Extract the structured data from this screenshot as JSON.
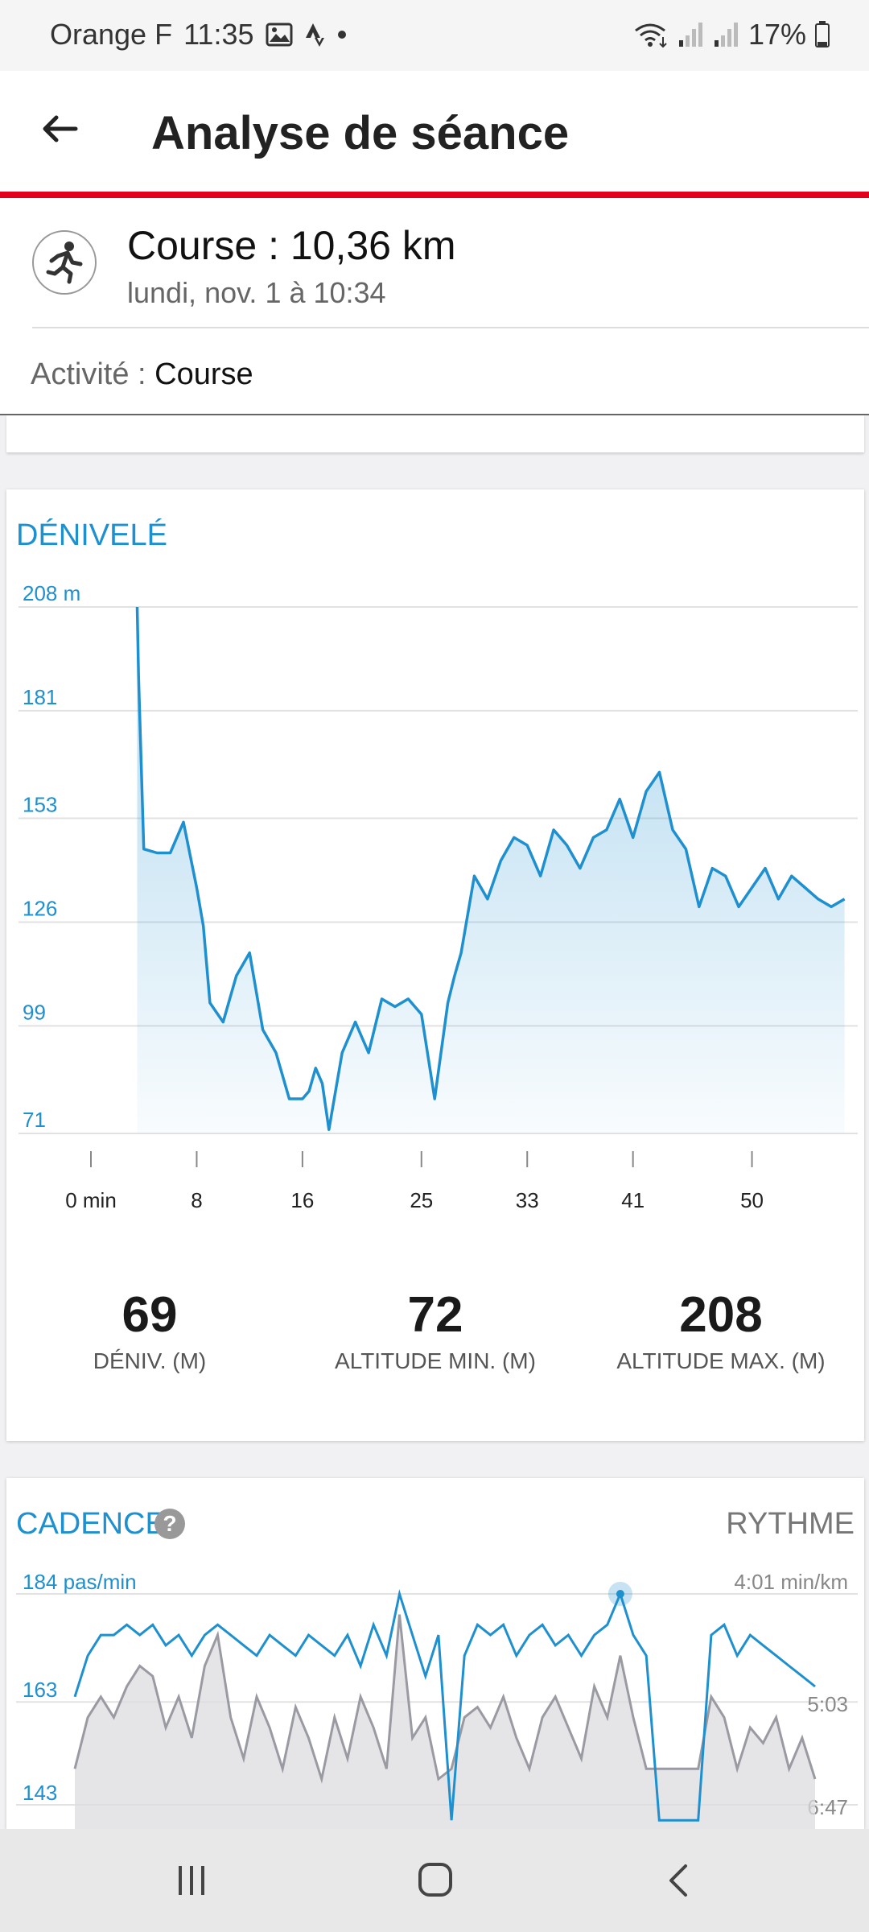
{
  "status_bar": {
    "carrier": "Orange F",
    "time": "11:35",
    "battery": "17%"
  },
  "app_bar": {
    "title": "Analyse de séance"
  },
  "session": {
    "title": "Course : 10,36 km",
    "date": "lundi, nov. 1 à 10:34",
    "activity_label": "Activité :",
    "activity_value": "Course"
  },
  "elevation": {
    "title": "DÉNIVELÉ",
    "stats": [
      {
        "value": "69",
        "label": "DÉNIV. (M)"
      },
      {
        "value": "72",
        "label": "ALTITUDE MIN. (M)"
      },
      {
        "value": "208",
        "label": "ALTITUDE MAX. (M)"
      }
    ]
  },
  "cadence": {
    "title": "CADENCE",
    "help": "?",
    "right_title": "RYTHME"
  },
  "colors": {
    "accent": "#1e90d0",
    "brand_red": "#e3001b",
    "pace_gray": "#9a9aa3"
  },
  "chart_data": [
    {
      "type": "area",
      "title": "DÉNIVELÉ",
      "y_tick_labels": [
        "208 m",
        "181",
        "153",
        "126",
        "99",
        "71"
      ],
      "y_ticks": [
        208,
        181,
        153,
        126,
        99,
        71
      ],
      "ylim": [
        71,
        208
      ],
      "x_tick_labels": [
        "0 min",
        "8",
        "16",
        "25",
        "33",
        "41",
        "50"
      ],
      "x_ticks": [
        0,
        8,
        16,
        25,
        33,
        41,
        50
      ],
      "xlim": [
        0,
        58
      ],
      "grid": true,
      "x": [
        3.5,
        3.6,
        4,
        5,
        6,
        7,
        8,
        8.5,
        9,
        10,
        11,
        12,
        13,
        14,
        15,
        16,
        16.5,
        17,
        17.5,
        18,
        18.5,
        19,
        20,
        20.5,
        21,
        22,
        23,
        24,
        25,
        26,
        27,
        27.5,
        28,
        28.5,
        29,
        30,
        31,
        32,
        33,
        34,
        35,
        36,
        37,
        38,
        39,
        40,
        41,
        42,
        43,
        44,
        45,
        46,
        47,
        48,
        49,
        50,
        51,
        52,
        53,
        54,
        55,
        56,
        57
      ],
      "values": [
        208,
        190,
        145,
        144,
        144,
        152,
        135,
        125,
        105,
        100,
        112,
        118,
        98,
        92,
        80,
        80,
        82,
        88,
        84,
        72,
        82,
        92,
        100,
        96,
        92,
        106,
        104,
        106,
        102,
        80,
        105,
        112,
        118,
        128,
        138,
        132,
        142,
        148,
        146,
        138,
        150,
        146,
        140,
        148,
        150,
        158,
        148,
        160,
        165,
        150,
        145,
        130,
        140,
        138,
        130,
        135,
        140,
        132,
        138,
        135,
        132,
        130,
        132
      ]
    },
    {
      "type": "line",
      "title": "CADENCE",
      "y_tick_labels": [
        "184 pas/min",
        "163",
        "143"
      ],
      "y_ticks": [
        184,
        163,
        143
      ],
      "y2_tick_labels": [
        "4:01 min/km",
        "5:03",
        "6:47"
      ],
      "series": [
        {
          "name": "CADENCE",
          "x": [
            0,
            1,
            2,
            3,
            4,
            5,
            6,
            7,
            8,
            9,
            10,
            11,
            12,
            13,
            14,
            15,
            16,
            17,
            18,
            19,
            20,
            21,
            22,
            23,
            24,
            25,
            26,
            27,
            28,
            29,
            30,
            31,
            32,
            33,
            34,
            35,
            36,
            37,
            38,
            39,
            40,
            41,
            42,
            43,
            44,
            45,
            46,
            47,
            48,
            49,
            50,
            51,
            52,
            53,
            54,
            55,
            56,
            57
          ],
          "values": [
            164,
            172,
            176,
            176,
            178,
            176,
            178,
            174,
            176,
            172,
            176,
            178,
            176,
            174,
            172,
            176,
            174,
            172,
            176,
            174,
            172,
            176,
            170,
            178,
            172,
            184,
            176,
            168,
            176,
            140,
            172,
            178,
            176,
            178,
            172,
            176,
            178,
            174,
            176,
            172,
            176,
            178,
            184,
            176,
            172,
            140,
            140,
            140,
            140,
            176,
            178,
            172,
            176,
            174,
            172,
            170,
            168,
            166
          ]
        },
        {
          "name": "RYTHME",
          "x": [
            0,
            1,
            2,
            3,
            4,
            5,
            6,
            7,
            8,
            9,
            10,
            11,
            12,
            13,
            14,
            15,
            16,
            17,
            18,
            19,
            20,
            21,
            22,
            23,
            24,
            25,
            26,
            27,
            28,
            29,
            30,
            31,
            32,
            33,
            34,
            35,
            36,
            37,
            38,
            39,
            40,
            41,
            42,
            43,
            44,
            45,
            46,
            47,
            48,
            49,
            50,
            51,
            52,
            53,
            54,
            55,
            56,
            57
          ],
          "values": [
            150,
            160,
            164,
            160,
            166,
            170,
            168,
            158,
            164,
            156,
            170,
            176,
            160,
            152,
            164,
            158,
            150,
            162,
            156,
            148,
            160,
            152,
            164,
            158,
            150,
            180,
            156,
            160,
            148,
            150,
            160,
            162,
            158,
            164,
            156,
            150,
            160,
            164,
            158,
            152,
            166,
            160,
            172,
            160,
            150,
            150,
            150,
            150,
            150,
            164,
            160,
            150,
            158,
            155,
            160,
            150,
            156,
            148
          ]
        }
      ]
    }
  ]
}
